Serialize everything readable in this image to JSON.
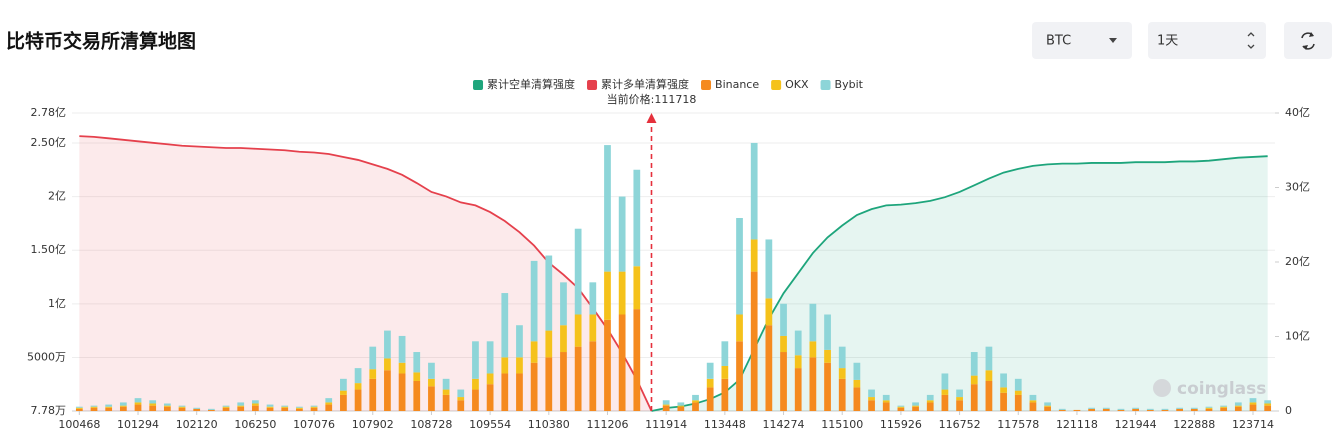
{
  "header": {
    "title": "比特币交易所清算地图",
    "controls": {
      "coin": "BTC",
      "period": "1天"
    }
  },
  "chart_data": {
    "type": "bar",
    "stacked": true,
    "grid": true,
    "legend": "top",
    "annotation": "当前价格:111718",
    "watermark": "coinglass",
    "categories": [
      "100468",
      null,
      null,
      null,
      "101294",
      null,
      null,
      null,
      "102120",
      null,
      null,
      null,
      "106250",
      null,
      null,
      null,
      "107076",
      null,
      null,
      null,
      "107902",
      null,
      null,
      null,
      "108728",
      null,
      null,
      null,
      "109554",
      null,
      null,
      null,
      "110380",
      null,
      null,
      null,
      "111206",
      null,
      null,
      null,
      "111914",
      null,
      null,
      null,
      "113448",
      null,
      null,
      null,
      "114274",
      null,
      null,
      null,
      "115100",
      null,
      null,
      null,
      "115926",
      null,
      null,
      null,
      "116752",
      null,
      null,
      null,
      "117578",
      null,
      null,
      null,
      "121118",
      null,
      null,
      null,
      "121944",
      null,
      null,
      null,
      "122888",
      null,
      null,
      null,
      "123714",
      null
    ],
    "ylim": [
      0.000778,
      2.78
    ],
    "yticks": [
      {
        "value": 0.000778,
        "label": "7.78万"
      },
      {
        "value": 0.5,
        "label": "5000万"
      },
      {
        "value": 1,
        "label": "1亿"
      },
      {
        "value": 1.5,
        "label": "1.50亿"
      },
      {
        "value": 2,
        "label": "2亿"
      },
      {
        "value": 2.5,
        "label": "2.50亿"
      },
      {
        "value": 2.78,
        "label": "2.78亿"
      }
    ],
    "y2lim": [
      0,
      40
    ],
    "y2ticks": [
      0,
      {
        "value": 10,
        "label": "10亿"
      },
      {
        "value": 20,
        "label": "20亿"
      },
      {
        "value": 30,
        "label": "30亿"
      },
      {
        "value": 40,
        "label": "40亿"
      }
    ],
    "series": [
      {
        "name": "累计空单清算强度",
        "type": "area",
        "axis": "y2",
        "color": "#1ea57c",
        "values": [
          null,
          null,
          null,
          null,
          null,
          null,
          null,
          null,
          null,
          null,
          null,
          null,
          null,
          null,
          null,
          null,
          null,
          null,
          null,
          null,
          null,
          null,
          null,
          null,
          null,
          null,
          null,
          null,
          null,
          null,
          null,
          null,
          null,
          null,
          null,
          null,
          null,
          null,
          null,
          0,
          0.4,
          0.6,
          1.0,
          1.6,
          2.5,
          4.2,
          8.3,
          12.4,
          15.8,
          18.5,
          21.2,
          23.3,
          24.9,
          26.3,
          27.1,
          27.6,
          27.7,
          27.9,
          28.2,
          28.7,
          29.4,
          30.3,
          31.2,
          32.0,
          32.5,
          32.9,
          33.1,
          33.2,
          33.2,
          33.3,
          33.3,
          33.3,
          33.4,
          33.4,
          33.4,
          33.5,
          33.5,
          33.6,
          33.8,
          34.0,
          34.1,
          34.2
        ]
      },
      {
        "name": "累计多单清算强度",
        "type": "area",
        "axis": "y2",
        "color": "#e5404c",
        "values": [
          36.9,
          36.8,
          36.6,
          36.4,
          36.2,
          36.0,
          35.8,
          35.6,
          35.5,
          35.4,
          35.3,
          35.3,
          35.2,
          35.1,
          35.0,
          34.8,
          34.7,
          34.5,
          34.1,
          33.7,
          33.1,
          32.5,
          31.7,
          30.6,
          29.4,
          28.8,
          28.0,
          27.6,
          26.7,
          25.5,
          24.0,
          22.2,
          19.9,
          18.3,
          16.5,
          13.8,
          11.0,
          7.8,
          4.2,
          0,
          null,
          null,
          null,
          null,
          null,
          null,
          null,
          null,
          null,
          null,
          null,
          null,
          null,
          null,
          null,
          null,
          null,
          null,
          null,
          null,
          null,
          null,
          null,
          null,
          null,
          null,
          null,
          null,
          null,
          null,
          null,
          null,
          null,
          null,
          null,
          null,
          null,
          null,
          null,
          null,
          null,
          null
        ]
      },
      {
        "name": "Binance",
        "type": "bar",
        "color": "#f58a1f",
        "values": [
          0.02,
          0.03,
          0.03,
          0.04,
          0.06,
          0.05,
          0.04,
          0.03,
          0.02,
          0.01,
          0.03,
          0.04,
          0.05,
          0.03,
          0.03,
          0.02,
          0.03,
          0.06,
          0.15,
          0.2,
          0.3,
          0.38,
          0.35,
          0.28,
          0.23,
          0.15,
          0.1,
          0.2,
          0.25,
          0.35,
          0.35,
          0.45,
          0.5,
          0.55,
          0.6,
          0.65,
          0.85,
          0.9,
          0.95,
          0,
          0.05,
          0.04,
          0.08,
          0.22,
          0.3,
          0.65,
          1.3,
          0.8,
          0.55,
          0.4,
          0.5,
          0.45,
          0.3,
          0.22,
          0.1,
          0.08,
          0.03,
          0.04,
          0.08,
          0.15,
          0.1,
          0.25,
          0.28,
          0.17,
          0.15,
          0.08,
          0.04,
          0.01,
          0.01,
          0.02,
          0.02,
          0.01,
          0.02,
          0.01,
          0.01,
          0.02,
          0.02,
          0.02,
          0.03,
          0.04,
          0.06,
          0.05
        ]
      },
      {
        "name": "OKX",
        "type": "bar",
        "color": "#f5c21b",
        "values": [
          0.01,
          0.01,
          0.01,
          0.01,
          0.02,
          0.02,
          0.01,
          0.01,
          0,
          0,
          0.01,
          0.01,
          0.02,
          0.01,
          0.01,
          0.01,
          0.01,
          0.02,
          0.04,
          0.06,
          0.09,
          0.11,
          0.1,
          0.08,
          0.07,
          0.05,
          0.03,
          0.1,
          0.1,
          0.15,
          0.15,
          0.2,
          0.25,
          0.25,
          0.3,
          0.25,
          0.45,
          0.4,
          0.4,
          0,
          0.01,
          0.01,
          0.02,
          0.08,
          0.12,
          0.25,
          0.3,
          0.25,
          0.15,
          0.12,
          0.15,
          0.12,
          0.1,
          0.07,
          0.03,
          0.02,
          0.01,
          0.01,
          0.02,
          0.05,
          0.03,
          0.08,
          0.1,
          0.05,
          0.04,
          0.02,
          0.01,
          0,
          0,
          0,
          0,
          0,
          0,
          0,
          0,
          0,
          0,
          0.01,
          0.01,
          0.01,
          0.02,
          0.02
        ]
      },
      {
        "name": "Bybit",
        "type": "bar",
        "color": "#8dd5d8",
        "values": [
          0.01,
          0.01,
          0.02,
          0.03,
          0.04,
          0.03,
          0.02,
          0.01,
          0.01,
          0.01,
          0.01,
          0.03,
          0.03,
          0.02,
          0.01,
          0.01,
          0.01,
          0.04,
          0.11,
          0.14,
          0.21,
          0.26,
          0.25,
          0.19,
          0.15,
          0.1,
          0.07,
          0.35,
          0.3,
          0.6,
          0.3,
          0.75,
          0.7,
          0.4,
          0.8,
          0.3,
          1.18,
          0.7,
          0.9,
          0,
          0.04,
          0.03,
          0.05,
          0.15,
          0.23,
          0.9,
          0.9,
          0.55,
          0.3,
          0.23,
          0.35,
          0.33,
          0.2,
          0.16,
          0.07,
          0.05,
          0.01,
          0.03,
          0.05,
          0.15,
          0.07,
          0.22,
          0.22,
          0.13,
          0.11,
          0.05,
          0.03,
          0.01,
          0,
          0.01,
          0.01,
          0.01,
          0.01,
          0.01,
          0.01,
          0.01,
          0.01,
          0.01,
          0.01,
          0.03,
          0.04,
          0.03
        ]
      }
    ]
  }
}
